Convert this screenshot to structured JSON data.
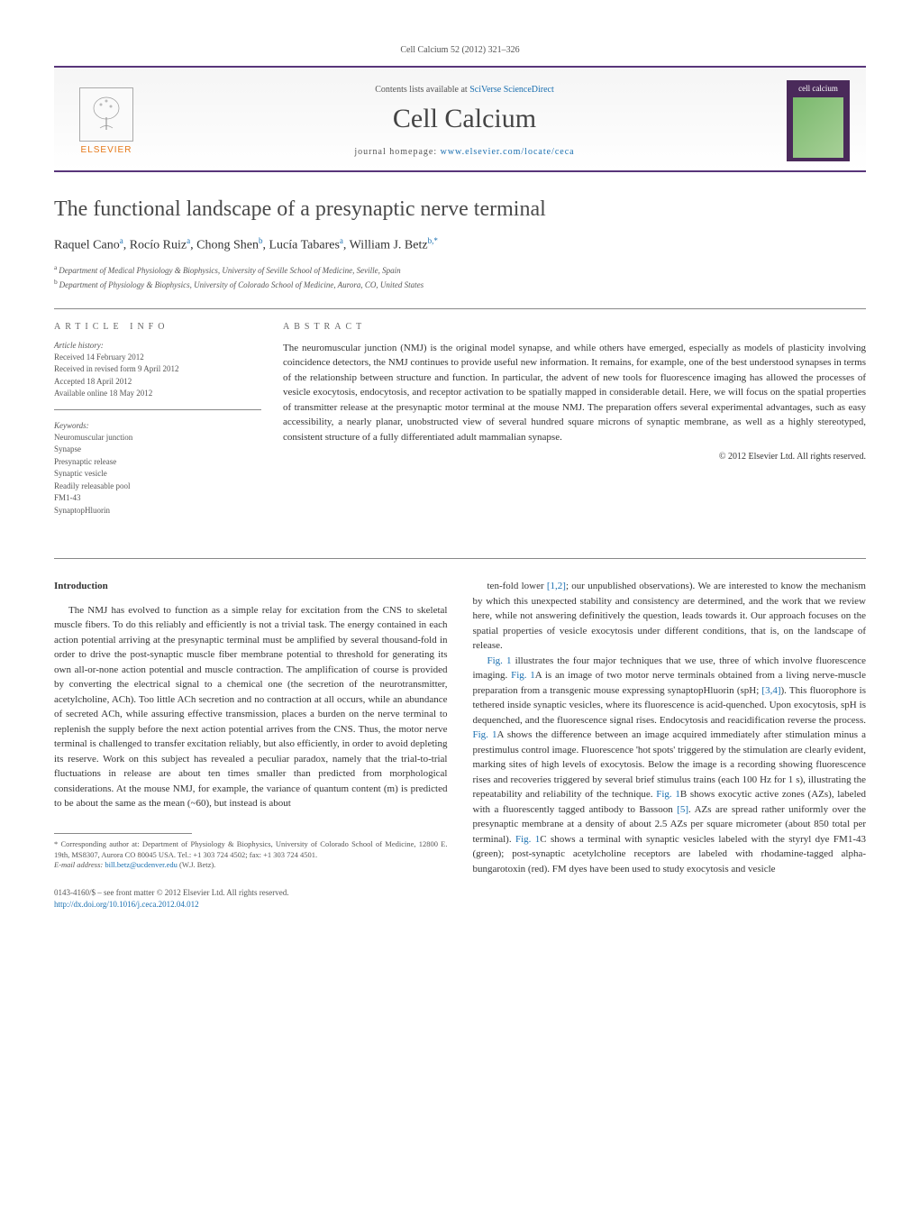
{
  "journal_ref": "Cell Calcium 52 (2012) 321–326",
  "header": {
    "contents_prefix": "Contents lists available at ",
    "contents_link": "SciVerse ScienceDirect",
    "journal_name": "Cell Calcium",
    "homepage_prefix": "journal homepage: ",
    "homepage_link": "www.elsevier.com/locate/ceca",
    "elsevier": "ELSEVIER",
    "cover_title": "cell calcium"
  },
  "article": {
    "title": "The functional landscape of a presynaptic nerve terminal",
    "authors_html": "Raquel Cano",
    "authors": [
      {
        "name": "Raquel Cano",
        "sup": "a"
      },
      {
        "name": "Rocío Ruiz",
        "sup": "a"
      },
      {
        "name": "Chong Shen",
        "sup": "b"
      },
      {
        "name": "Lucía Tabares",
        "sup": "a"
      },
      {
        "name": "William J. Betz",
        "sup": "b,*"
      }
    ],
    "affiliations": [
      {
        "sup": "a",
        "text": "Department of Medical Physiology & Biophysics, University of Seville School of Medicine, Seville, Spain"
      },
      {
        "sup": "b",
        "text": "Department of Physiology & Biophysics, University of Colorado School of Medicine, Aurora, CO, United States"
      }
    ]
  },
  "info": {
    "heading": "ARTICLE INFO",
    "history_label": "Article history:",
    "history": [
      "Received 14 February 2012",
      "Received in revised form 9 April 2012",
      "Accepted 18 April 2012",
      "Available online 18 May 2012"
    ],
    "keywords_label": "Keywords:",
    "keywords": [
      "Neuromuscular junction",
      "Synapse",
      "Presynaptic release",
      "Synaptic vesicle",
      "Readily releasable pool",
      "FM1-43",
      "SynaptopHluorin"
    ]
  },
  "abstract": {
    "heading": "ABSTRACT",
    "text": "The neuromuscular junction (NMJ) is the original model synapse, and while others have emerged, especially as models of plasticity involving coincidence detectors, the NMJ continues to provide useful new information. It remains, for example, one of the best understood synapses in terms of the relationship between structure and function. In particular, the advent of new tools for fluorescence imaging has allowed the processes of vesicle exocytosis, endocytosis, and receptor activation to be spatially mapped in considerable detail. Here, we will focus on the spatial properties of transmitter release at the presynaptic motor terminal at the mouse NMJ. The preparation offers several experimental advantages, such as easy accessibility, a nearly planar, unobstructed view of several hundred square microns of synaptic membrane, as well as a highly stereotyped, consistent structure of a fully differentiated adult mammalian synapse.",
    "copyright": "© 2012 Elsevier Ltd. All rights reserved."
  },
  "body": {
    "intro_heading": "Introduction",
    "col1_p1": "The NMJ has evolved to function as a simple relay for excitation from the CNS to skeletal muscle fibers. To do this reliably and efficiently is not a trivial task. The energy contained in each action potential arriving at the presynaptic terminal must be amplified by several thousand-fold in order to drive the post-synaptic muscle fiber membrane potential to threshold for generating its own all-or-none action potential and muscle contraction. The amplification of course is provided by converting the electrical signal to a chemical one (the secretion of the neurotransmitter, acetylcholine, ACh). Too little ACh secretion and no contraction at all occurs, while an abundance of secreted ACh, while assuring effective transmission, places a burden on the nerve terminal to replenish the supply before the next action potential arrives from the CNS. Thus, the motor nerve terminal is challenged to transfer excitation reliably, but also efficiently, in order to avoid depleting its reserve. Work on this subject has revealed a peculiar paradox, namely that the trial-to-trial fluctuations in release are about ten times smaller than predicted from morphological considerations. At the mouse NMJ, for example, the variance of quantum content (m) is predicted to be about the same as the mean (~60), but instead is about",
    "col2_p1_pre": "ten-fold lower ",
    "col2_p1_ref1": "[1,2]",
    "col2_p1_post": "; our unpublished observations). We are interested to know the mechanism by which this unexpected stability and consistency are determined, and the work that we review here, while not answering definitively the question, leads towards it. Our approach focuses on the spatial properties of vesicle exocytosis under different conditions, that is, on the landscape of release.",
    "col2_p2_a": "Fig. 1",
    "col2_p2_b": " illustrates the four major techniques that we use, three of which involve fluorescence imaging. ",
    "col2_p2_c": "Fig. 1",
    "col2_p2_d": "A is an image of two motor nerve terminals obtained from a living nerve-muscle preparation from a transgenic mouse expressing synaptopHluorin (spH; ",
    "col2_p2_ref34": "[3,4]",
    "col2_p2_e": "). This fluorophore is tethered inside synaptic vesicles, where its fluorescence is acid-quenched. Upon exocytosis, spH is dequenched, and the fluorescence signal rises. Endocytosis and reacidification reverse the process. ",
    "col2_p2_f": "Fig. 1",
    "col2_p2_g": "A shows the difference between an image acquired immediately after stimulation minus a prestimulus control image. Fluorescence 'hot spots' triggered by the stimulation are clearly evident, marking sites of high levels of exocytosis. Below the image is a recording showing fluorescence rises and recoveries triggered by several brief stimulus trains (each 100 Hz for 1 s), illustrating the repeatability and reliability of the technique. ",
    "col2_p2_h": "Fig. 1",
    "col2_p2_i": "B shows exocytic active zones (AZs), labeled with a fluorescently tagged antibody to Bassoon ",
    "col2_p2_ref5": "[5]",
    "col2_p2_j": ". AZs are spread rather uniformly over the presynaptic membrane at a density of about 2.5 AZs per square micrometer (about 850 total per terminal). ",
    "col2_p2_k": "Fig. 1",
    "col2_p2_l": "C shows a terminal with synaptic vesicles labeled with the styryl dye FM1-43 (green); post-synaptic acetylcholine receptors are labeled with rhodamine-tagged alpha-bungarotoxin (red). FM dyes have been used to study exocytosis and vesicle"
  },
  "footnote": {
    "corr_label": "* Corresponding author at: Department of Physiology & Biophysics, University of Colorado School of Medicine, 12800 E. 19th, MS8307, Aurora CO 80045 USA. Tel.: +1 303 724 4502; fax: +1 303 724 4501.",
    "email_label": "E-mail address: ",
    "email": "bill.betz@ucdenver.edu",
    "email_suffix": " (W.J. Betz)."
  },
  "bottom": {
    "line1": "0143-4160/$ – see front matter © 2012 Elsevier Ltd. All rights reserved.",
    "doi": "http://dx.doi.org/10.1016/j.ceca.2012.04.012"
  },
  "colors": {
    "purple": "#58357a",
    "link": "#1a6fb0",
    "orange": "#e67817"
  }
}
